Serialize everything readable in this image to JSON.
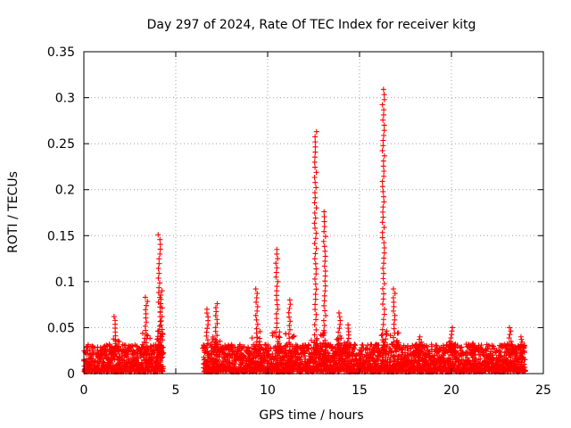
{
  "chart_data": {
    "type": "scatter",
    "title": "Day 297 of 2024, Rate Of TEC Index for receiver kitg",
    "xlabel": "GPS time / hours",
    "ylabel": "ROTI / TECUs",
    "xlim": [
      0,
      25
    ],
    "ylim": [
      0,
      0.35
    ],
    "x_ticks": [
      "0",
      "5",
      "10",
      "15",
      "20",
      "25"
    ],
    "y_ticks": [
      "0",
      "0.05",
      "0.1",
      "0.15",
      "0.2",
      "0.25",
      "0.3",
      "0.35"
    ],
    "grid": true,
    "marker": "plus",
    "series_color": "#ff0000",
    "coverage_segments": [
      [
        0.0,
        4.3
      ],
      [
        6.5,
        24.0
      ]
    ],
    "baseline_range": [
      0.0,
      0.03
    ],
    "peaks": [
      {
        "x": 1.7,
        "y": 0.062
      },
      {
        "x": 3.4,
        "y": 0.083
      },
      {
        "x": 4.1,
        "y": 0.151
      },
      {
        "x": 4.2,
        "y": 0.09
      },
      {
        "x": 6.7,
        "y": 0.07
      },
      {
        "x": 7.2,
        "y": 0.076
      },
      {
        "x": 9.4,
        "y": 0.092
      },
      {
        "x": 10.5,
        "y": 0.135
      },
      {
        "x": 11.2,
        "y": 0.08
      },
      {
        "x": 12.6,
        "y": 0.263
      },
      {
        "x": 13.1,
        "y": 0.176
      },
      {
        "x": 13.9,
        "y": 0.066
      },
      {
        "x": 14.4,
        "y": 0.053
      },
      {
        "x": 16.3,
        "y": 0.309
      },
      {
        "x": 16.9,
        "y": 0.092
      },
      {
        "x": 18.3,
        "y": 0.04
      },
      {
        "x": 20.0,
        "y": 0.05
      },
      {
        "x": 21.2,
        "y": 0.033
      },
      {
        "x": 23.2,
        "y": 0.05
      },
      {
        "x": 23.8,
        "y": 0.04
      }
    ]
  }
}
